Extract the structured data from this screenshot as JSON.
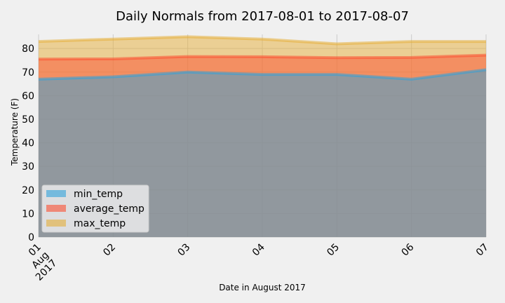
{
  "chart_data": {
    "type": "area",
    "title": "Daily Normals from 2017-08-01 to 2017-08-07",
    "xlabel": "Date in August 2017",
    "ylabel": "Temperature (F)",
    "x": [
      "2017-08-01",
      "2017-08-02",
      "2017-08-03",
      "2017-08-04",
      "2017-08-05",
      "2017-08-06",
      "2017-08-07"
    ],
    "x_tick_labels": [
      "01\nAug\n2017",
      "02",
      "03",
      "04",
      "05",
      "06",
      "07"
    ],
    "ylim": [
      0,
      86
    ],
    "yticks": [
      0,
      10,
      20,
      30,
      40,
      50,
      60,
      70,
      80
    ],
    "grid": true,
    "stacked": false,
    "legend_position": "lower-left",
    "series": [
      {
        "name": "min_temp",
        "values": [
          67,
          68,
          70,
          69,
          69,
          67,
          71
        ],
        "color": "#30a2da"
      },
      {
        "name": "average_temp",
        "values": [
          75.5,
          75.6,
          76.6,
          76.5,
          76.1,
          76.2,
          77.2
        ],
        "color": "#fc4f30"
      },
      {
        "name": "max_temp",
        "values": [
          83,
          84,
          85,
          84,
          82,
          83,
          83
        ],
        "color": "#e5ae38"
      }
    ]
  }
}
